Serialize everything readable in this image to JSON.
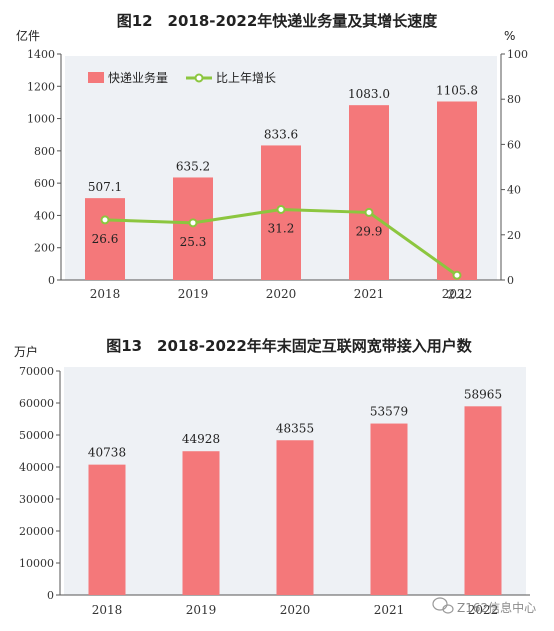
{
  "chart_data": [
    {
      "type": "bar",
      "title": "图12　2018-2022年快递业务量及其增长速度",
      "categories": [
        "2018",
        "2019",
        "2020",
        "2021",
        "2022"
      ],
      "series": [
        {
          "name": "快递业务量",
          "type": "bar",
          "axis": "left",
          "values": [
            507.1,
            635.2,
            833.6,
            1083.0,
            1105.8
          ],
          "value_labels": [
            "507.1",
            "635.2",
            "833.6",
            "1083.0",
            "1105.8"
          ],
          "color": "#f4787a"
        },
        {
          "name": "比上年增长",
          "type": "line",
          "axis": "right",
          "values": [
            26.6,
            25.3,
            31.2,
            29.9,
            2.1
          ],
          "value_labels": [
            "26.6",
            "25.3",
            "31.2",
            "29.9",
            "2.1"
          ],
          "color": "#8cc63f"
        }
      ],
      "ylabel": "亿件",
      "y2label": "%",
      "ylim": [
        0,
        1400
      ],
      "y2lim": [
        0,
        100
      ],
      "yticks": [
        "0",
        "200",
        "400",
        "600",
        "800",
        "1000",
        "1200",
        "1400"
      ],
      "y2ticks": [
        "0",
        "20",
        "40",
        "60",
        "80",
        "100"
      ],
      "legend": "top-left",
      "grid": false,
      "panel_background": "#eef1f5"
    },
    {
      "type": "bar",
      "title": "图13　2018-2022年年末固定互联网宽带接入用户数",
      "categories": [
        "2018",
        "2019",
        "2020",
        "2021",
        "2022"
      ],
      "series": [
        {
          "values": [
            40738,
            44928,
            48355,
            53579,
            58965
          ],
          "value_labels": [
            "40738",
            "44928",
            "48355",
            "53579",
            "58965"
          ],
          "color": "#f4787a"
        }
      ],
      "ylabel": "万户",
      "ylim": [
        0,
        70000
      ],
      "yticks": [
        "0",
        "10000",
        "20000",
        "30000",
        "40000",
        "50000",
        "60000",
        "70000"
      ],
      "grid": false,
      "panel_background": "#eef1f5"
    }
  ],
  "watermark": {
    "text": "Z162信息中心",
    "icon": "wechat-logo-icon"
  }
}
